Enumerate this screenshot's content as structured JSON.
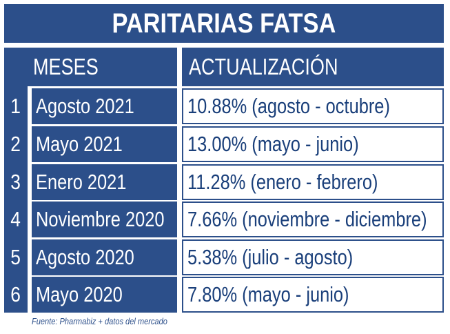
{
  "title": "PARITARIAS FATSA",
  "headers": {
    "meses": "MESES",
    "actualizacion": "ACTUALIZACIÓN"
  },
  "rows": [
    {
      "num": "1",
      "mes": "Agosto 2021",
      "actualizacion": "10.88% (agosto - octubre)"
    },
    {
      "num": "2",
      "mes": "Mayo 2021",
      "actualizacion": "13.00% (mayo - junio)"
    },
    {
      "num": "3",
      "mes": "Enero 2021",
      "actualizacion": "11.28% (enero - febrero)"
    },
    {
      "num": "4",
      "mes": "Noviembre 2020",
      "actualizacion": "7.66% (noviembre - diciembre)"
    },
    {
      "num": "5",
      "mes": "Agosto 2020",
      "actualizacion": "5.38% (julio - agosto)"
    },
    {
      "num": "6",
      "mes": "Mayo 2020",
      "actualizacion": "7.80% (mayo - junio)"
    }
  ],
  "fuente": "Fuente: Pharmabiz + datos del mercado",
  "colors": {
    "primary": "#2c4f8a",
    "text_dark": "#1a3f7a",
    "background": "#ffffff"
  }
}
